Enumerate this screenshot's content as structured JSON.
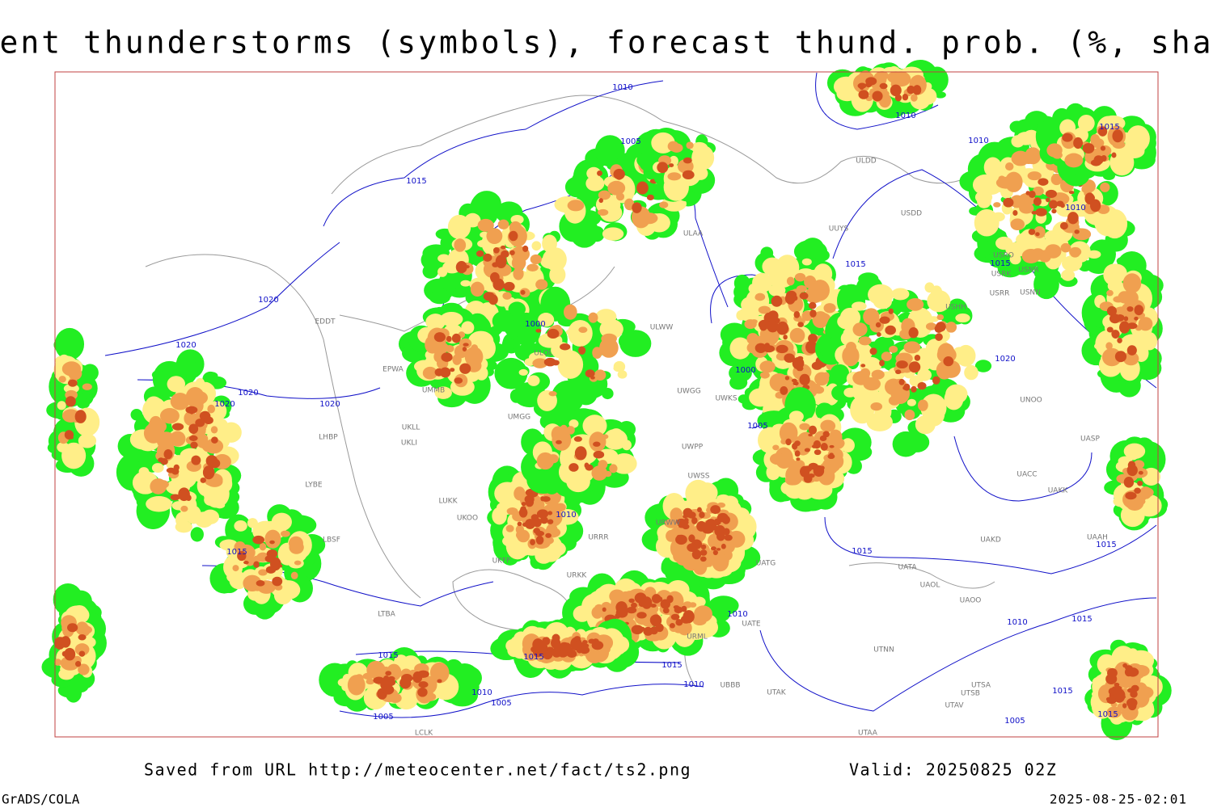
{
  "header": {
    "title": "Current thunderstorms (symbols), forecast thund. prob. (%, shaded)"
  },
  "footer": {
    "source": "Saved from URL http://meteocenter.net/fact/ts2.png",
    "valid": "Valid: 20250825 02Z",
    "software": "GrADS/COLA",
    "timestamp": "2025-08-25-02:01"
  },
  "isobars": [
    "1010",
    "1005",
    "1015",
    "1010",
    "1015",
    "1010",
    "1010",
    "1015",
    "1015",
    "1020",
    "1000",
    "1020",
    "1000",
    "1020",
    "1020",
    "1020",
    "1020",
    "1005",
    "1010",
    "1015",
    "1015",
    "1015",
    "1010",
    "1010",
    "1015",
    "1015",
    "1015",
    "1015",
    "1010",
    "1010",
    "1005",
    "1005",
    "1015",
    "1005",
    "1015"
  ],
  "stations": [
    "ULDD",
    "USDD",
    "UUYS",
    "ULAA",
    "USRO",
    "USRK",
    "USNR",
    "USRR",
    "USNN",
    "USHH",
    "EDDT",
    "ULWW",
    "ULOL",
    "EPWA",
    "UWGG",
    "UWKS",
    "UMMB",
    "UNOO",
    "UMGG",
    "UKLL",
    "UKLI",
    "LHBP",
    "UWPP",
    "UASP",
    "UACC",
    "UWSS",
    "UAKK",
    "LYBE",
    "LUKK",
    "UKOO",
    "URWW",
    "URRR",
    "UAKD",
    "UAAH",
    "LBSF",
    "UKFF",
    "UATG",
    "UATA",
    "URKK",
    "UAOL",
    "UAOO",
    "LTBA",
    "UATE",
    "UTNN",
    "URML",
    "UBBB",
    "UTAK",
    "UTSA",
    "UTSB",
    "UTAV",
    "UTAA",
    "LCLK"
  ]
}
